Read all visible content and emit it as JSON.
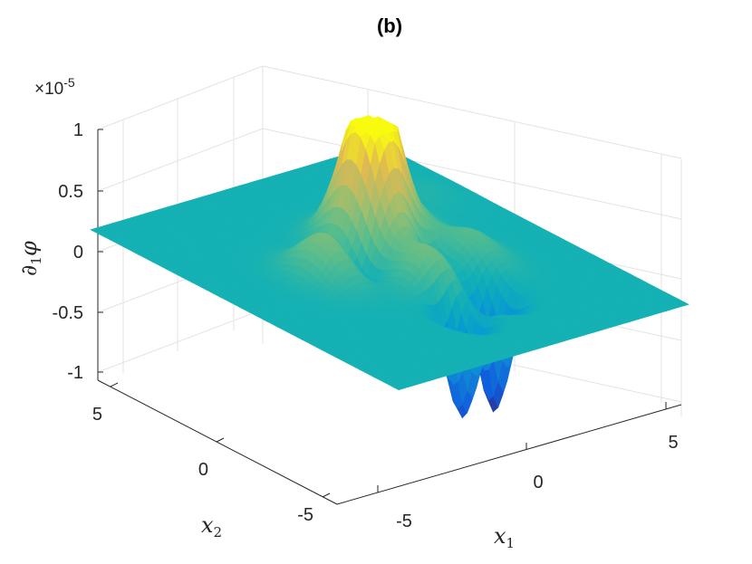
{
  "chart_data": {
    "type": "surface",
    "title": "(b)",
    "xlabel": "x",
    "xlabel_sub": "1",
    "ylabel": "x",
    "ylabel_sub": "2",
    "zlabel": "∂",
    "zlabel_sub": "1",
    "zlabel_tail": "φ",
    "z_exponent": "×10",
    "z_exponent_power": "-5",
    "xlim": [
      -8,
      8
    ],
    "ylim": [
      -8,
      8
    ],
    "zlim": [
      -1,
      1
    ],
    "x_ticks": [
      "-5",
      "0",
      "5"
    ],
    "y_ticks": [
      "-5",
      "0",
      "5"
    ],
    "z_ticks": [
      "-1",
      "-0.5",
      "0",
      "0.5",
      "1"
    ],
    "colormap": "parula",
    "grid": true,
    "base_level": 0,
    "features": [
      {
        "x": 0.2,
        "y": 1.5,
        "amplitude": 0.86,
        "kind": "peak"
      },
      {
        "x": 1.2,
        "y": 1.5,
        "amplitude": 0.84,
        "kind": "peak"
      },
      {
        "x": -3.0,
        "y": 0.5,
        "amplitude": 0.36,
        "kind": "peak"
      },
      {
        "x": 3.0,
        "y": 2.5,
        "amplitude": 0.3,
        "kind": "peak"
      },
      {
        "x": 0.0,
        "y": -2.0,
        "amplitude": 0.32,
        "kind": "peak"
      },
      {
        "x": 3.5,
        "y": -1.0,
        "amplitude": 0.22,
        "kind": "peak"
      },
      {
        "x": 6.0,
        "y": 4.0,
        "amplitude": 0.05,
        "kind": "peak"
      },
      {
        "x": 2.0,
        "y": -3.5,
        "amplitude": -1.0,
        "kind": "trough"
      },
      {
        "x": -0.5,
        "y": -4.2,
        "amplitude": -0.9,
        "kind": "trough"
      },
      {
        "x": -1.5,
        "y": 0.0,
        "amplitude": -0.2,
        "kind": "trough"
      },
      {
        "x": 1.5,
        "y": -0.5,
        "amplitude": -0.2,
        "kind": "trough"
      }
    ]
  }
}
